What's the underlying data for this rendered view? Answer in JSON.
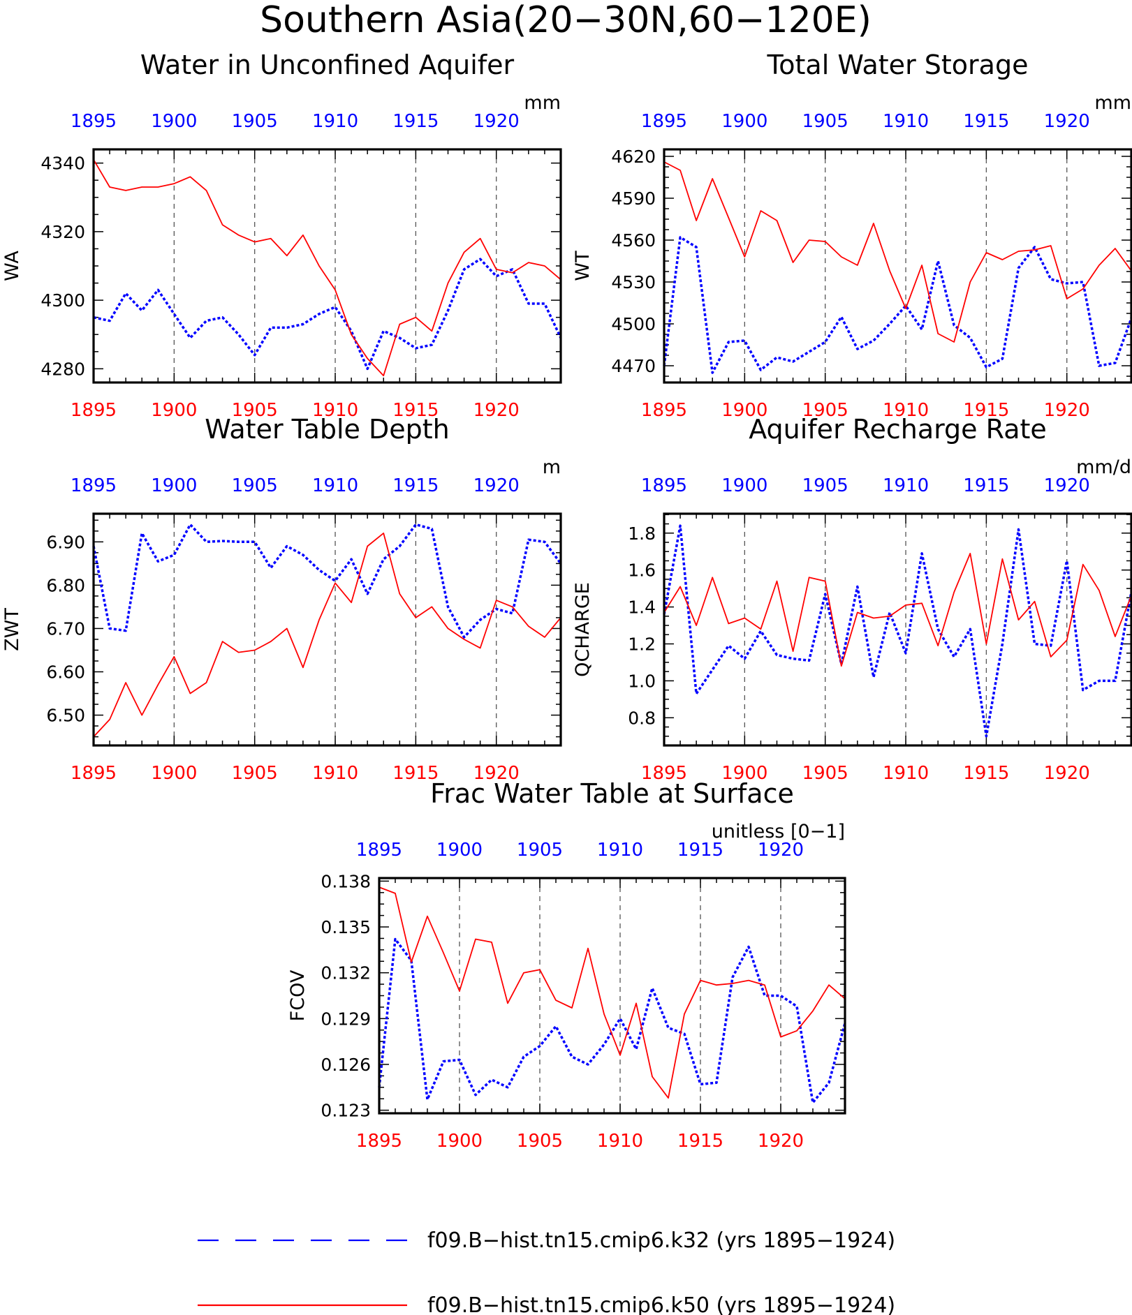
{
  "page": {
    "title": "Southern Asia(20−30N,60−120E)",
    "legend": [
      {
        "label": "f09.B−hist.tn15.cmip6.k32 (yrs 1895−1924)",
        "color": "#0000ff",
        "style": "dashed"
      },
      {
        "label": "f09.B−hist.tn15.cmip6.k50 (yrs 1895−1924)",
        "color": "#ff0000",
        "style": "solid"
      }
    ]
  },
  "chart_data": [
    {
      "type": "line",
      "title": "Water in Unconfined Aquifer",
      "ylabel": "WA",
      "units": "mm",
      "xlim": [
        1895,
        1924
      ],
      "ylim": [
        4276,
        4344
      ],
      "yticks": [
        4280,
        4300,
        4320,
        4340
      ],
      "ytick_labels": [
        "4280",
        "4300",
        "4320",
        "4340"
      ],
      "xticks": [
        1895,
        1900,
        1905,
        1910,
        1915,
        1920
      ],
      "xtick_labels": [
        "1895",
        "1900",
        "1905",
        "1910",
        "1915",
        "1920"
      ],
      "x": [
        1895,
        1896,
        1897,
        1898,
        1899,
        1900,
        1901,
        1902,
        1903,
        1904,
        1905,
        1906,
        1907,
        1908,
        1909,
        1910,
        1911,
        1912,
        1913,
        1914,
        1915,
        1916,
        1917,
        1918,
        1919,
        1920,
        1921,
        1922,
        1923,
        1924
      ],
      "series": [
        {
          "name": "f09.B−hist.tn15.cmip6.k32 (yrs 1895−1924)",
          "color": "#0000ff",
          "values": [
            4295,
            4294,
            4302,
            4297,
            4303,
            4296,
            4289,
            4294,
            4295,
            4290,
            4284,
            4292,
            4292,
            4293,
            4296,
            4298,
            4291,
            4280,
            4291,
            4289,
            4286,
            4287,
            4297,
            4309,
            4312,
            4307,
            4309,
            4299,
            4299,
            4289
          ]
        },
        {
          "name": "f09.B−hist.tn15.cmip6.k50 (yrs 1895−1924)",
          "color": "#ff0000",
          "values": [
            4341,
            4333,
            4332,
            4333,
            4333,
            4334,
            4336,
            4332,
            4322,
            4319,
            4317,
            4318,
            4313,
            4319,
            4310,
            4303,
            4290,
            4283,
            4278,
            4293,
            4295,
            4291,
            4305,
            4314,
            4318,
            4309,
            4308,
            4311,
            4310,
            4306
          ]
        }
      ]
    },
    {
      "type": "line",
      "title": "Total Water Storage",
      "ylabel": "WT",
      "units": "mm",
      "xlim": [
        1895,
        1924
      ],
      "ylim": [
        4458,
        4625
      ],
      "yticks": [
        4470,
        4500,
        4530,
        4560,
        4590,
        4620
      ],
      "ytick_labels": [
        "4470",
        "4500",
        "4530",
        "4560",
        "4590",
        "4620"
      ],
      "xticks": [
        1895,
        1900,
        1905,
        1910,
        1915,
        1920
      ],
      "xtick_labels": [
        "1895",
        "1900",
        "1905",
        "1910",
        "1915",
        "1920"
      ],
      "x": [
        1895,
        1896,
        1897,
        1898,
        1899,
        1900,
        1901,
        1902,
        1903,
        1904,
        1905,
        1906,
        1907,
        1908,
        1909,
        1910,
        1911,
        1912,
        1913,
        1914,
        1915,
        1916,
        1917,
        1918,
        1919,
        1920,
        1921,
        1922,
        1923,
        1924
      ],
      "series": [
        {
          "name": "f09.B−hist.tn15.cmip6.k32 (yrs 1895−1924)",
          "color": "#0000ff",
          "values": [
            4470,
            4562,
            4555,
            4465,
            4487,
            4488,
            4467,
            4476,
            4473,
            4480,
            4487,
            4505,
            4482,
            4488,
            4500,
            4513,
            4496,
            4545,
            4499,
            4490,
            4469,
            4475,
            4540,
            4555,
            4532,
            4529,
            4530,
            4470,
            4472,
            4504
          ]
        },
        {
          "name": "f09.B−hist.tn15.cmip6.k50 (yrs 1895−1924)",
          "color": "#ff0000",
          "values": [
            4616,
            4610,
            4574,
            4604,
            4576,
            4548,
            4581,
            4574,
            4544,
            4560,
            4559,
            4548,
            4542,
            4572,
            4538,
            4511,
            4542,
            4493,
            4487,
            4530,
            4551,
            4546,
            4552,
            4553,
            4556,
            4518,
            4525,
            4542,
            4554,
            4538
          ]
        }
      ]
    },
    {
      "type": "line",
      "title": "Water Table Depth",
      "ylabel": "ZWT",
      "units": "m",
      "xlim": [
        1895,
        1924
      ],
      "ylim": [
        6.43,
        6.965
      ],
      "yticks": [
        6.5,
        6.6,
        6.7,
        6.8,
        6.9
      ],
      "ytick_labels": [
        "6.50",
        "6.60",
        "6.70",
        "6.80",
        "6.90"
      ],
      "xticks": [
        1895,
        1900,
        1905,
        1910,
        1915,
        1920
      ],
      "xtick_labels": [
        "1895",
        "1900",
        "1905",
        "1910",
        "1915",
        "1920"
      ],
      "x": [
        1895,
        1896,
        1897,
        1898,
        1899,
        1900,
        1901,
        1902,
        1903,
        1904,
        1905,
        1906,
        1907,
        1908,
        1909,
        1910,
        1911,
        1912,
        1913,
        1914,
        1915,
        1916,
        1917,
        1918,
        1919,
        1920,
        1921,
        1922,
        1923,
        1924
      ],
      "series": [
        {
          "name": "f09.B−hist.tn15.cmip6.k32 (yrs 1895−1924)",
          "color": "#0000ff",
          "values": [
            6.89,
            6.7,
            6.695,
            6.92,
            6.855,
            6.87,
            6.94,
            6.9,
            6.902,
            6.9,
            6.9,
            6.84,
            6.89,
            6.87,
            6.835,
            6.81,
            6.86,
            6.78,
            6.86,
            6.89,
            6.94,
            6.93,
            6.75,
            6.68,
            6.72,
            6.745,
            6.735,
            6.905,
            6.9,
            6.85
          ]
        },
        {
          "name": "f09.B−hist.tn15.cmip6.k50 (yrs 1895−1924)",
          "color": "#ff0000",
          "values": [
            6.45,
            6.49,
            6.575,
            6.5,
            6.57,
            6.635,
            6.55,
            6.575,
            6.67,
            6.645,
            6.65,
            6.67,
            6.7,
            6.61,
            6.72,
            6.805,
            6.76,
            6.89,
            6.92,
            6.78,
            6.725,
            6.75,
            6.7,
            6.675,
            6.655,
            6.765,
            6.75,
            6.705,
            6.68,
            6.725
          ]
        }
      ]
    },
    {
      "type": "line",
      "title": "Aquifer Recharge Rate",
      "ylabel": "QCHARGE",
      "units": "mm/d",
      "xlim": [
        1895,
        1924
      ],
      "ylim": [
        0.65,
        1.905
      ],
      "yticks": [
        0.8,
        1.0,
        1.2,
        1.4,
        1.6,
        1.8
      ],
      "ytick_labels": [
        "0.8",
        "1.0",
        "1.2",
        "1.4",
        "1.6",
        "1.8"
      ],
      "xticks": [
        1895,
        1900,
        1905,
        1910,
        1915,
        1920
      ],
      "xtick_labels": [
        "1895",
        "1900",
        "1905",
        "1910",
        "1915",
        "1920"
      ],
      "x": [
        1895,
        1896,
        1897,
        1898,
        1899,
        1900,
        1901,
        1902,
        1903,
        1904,
        1905,
        1906,
        1907,
        1908,
        1909,
        1910,
        1911,
        1912,
        1913,
        1914,
        1915,
        1916,
        1917,
        1918,
        1919,
        1920,
        1921,
        1922,
        1923,
        1924
      ],
      "series": [
        {
          "name": "f09.B−hist.tn15.cmip6.k32 (yrs 1895−1924)",
          "color": "#0000ff",
          "values": [
            1.36,
            1.84,
            0.93,
            1.06,
            1.19,
            1.12,
            1.27,
            1.14,
            1.12,
            1.11,
            1.47,
            1.09,
            1.51,
            1.02,
            1.37,
            1.15,
            1.69,
            1.28,
            1.13,
            1.28,
            0.7,
            1.2,
            1.82,
            1.2,
            1.19,
            1.65,
            0.95,
            1.0,
            1.0,
            1.48
          ]
        },
        {
          "name": "f09.B−hist.tn15.cmip6.k50 (yrs 1895−1924)",
          "color": "#ff0000",
          "values": [
            1.37,
            1.51,
            1.3,
            1.56,
            1.31,
            1.34,
            1.28,
            1.54,
            1.16,
            1.56,
            1.54,
            1.08,
            1.37,
            1.34,
            1.35,
            1.41,
            1.42,
            1.19,
            1.48,
            1.69,
            1.2,
            1.66,
            1.33,
            1.43,
            1.13,
            1.22,
            1.63,
            1.49,
            1.24,
            1.46
          ]
        }
      ]
    },
    {
      "type": "line",
      "title": "Frac Water Table at Surface",
      "ylabel": "FCOV",
      "units": "unitless [0−1]",
      "xlim": [
        1895,
        1924
      ],
      "ylim": [
        0.1228,
        0.1382
      ],
      "yticks": [
        0.123,
        0.126,
        0.129,
        0.132,
        0.135,
        0.138
      ],
      "ytick_labels": [
        "0.123",
        "0.126",
        "0.129",
        "0.132",
        "0.135",
        "0.138"
      ],
      "xticks": [
        1895,
        1900,
        1905,
        1910,
        1915,
        1920
      ],
      "xtick_labels": [
        "1895",
        "1900",
        "1905",
        "1910",
        "1915",
        "1920"
      ],
      "x": [
        1895,
        1896,
        1897,
        1898,
        1899,
        1900,
        1901,
        1902,
        1903,
        1904,
        1905,
        1906,
        1907,
        1908,
        1909,
        1910,
        1911,
        1912,
        1913,
        1914,
        1915,
        1916,
        1917,
        1918,
        1919,
        1920,
        1921,
        1922,
        1923,
        1924
      ],
      "series": [
        {
          "name": "f09.B−hist.tn15.cmip6.k32 (yrs 1895−1924)",
          "color": "#0000ff",
          "values": [
            0.1245,
            0.1342,
            0.1328,
            0.1237,
            0.1262,
            0.1263,
            0.124,
            0.125,
            0.1245,
            0.1265,
            0.1272,
            0.1285,
            0.1265,
            0.126,
            0.1273,
            0.129,
            0.127,
            0.131,
            0.1284,
            0.128,
            0.1247,
            0.1248,
            0.1317,
            0.1337,
            0.1305,
            0.1305,
            0.1298,
            0.1235,
            0.1248,
            0.1287
          ]
        },
        {
          "name": "f09.B−hist.tn15.cmip6.k50 (yrs 1895−1924)",
          "color": "#ff0000",
          "values": [
            0.1376,
            0.1372,
            0.1327,
            0.1357,
            0.1333,
            0.1308,
            0.1342,
            0.134,
            0.13,
            0.132,
            0.1322,
            0.1302,
            0.1297,
            0.1336,
            0.1293,
            0.1266,
            0.13,
            0.1252,
            0.1238,
            0.1293,
            0.1315,
            0.1312,
            0.1313,
            0.1315,
            0.1312,
            0.1278,
            0.1282,
            0.1295,
            0.1312,
            0.1303
          ]
        }
      ]
    }
  ]
}
